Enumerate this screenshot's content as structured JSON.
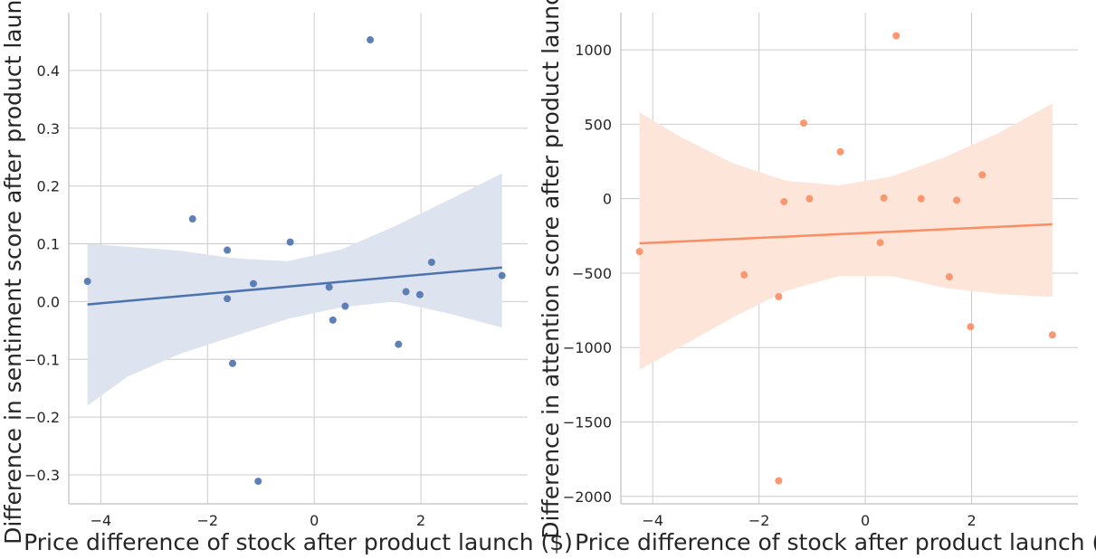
{
  "chart_data": [
    {
      "type": "scatter",
      "name_hint": "left",
      "xlabel": "Price difference of stock after product launch ($)",
      "ylabel": "Difference in sentiment score after product launch",
      "xlim": [
        -4.6,
        4.0
      ],
      "ylim": [
        -0.35,
        0.5
      ],
      "xticks": [
        -4,
        -2,
        0,
        2
      ],
      "xtick_labels": [
        "−4",
        "−2",
        "0",
        "2"
      ],
      "yticks": [
        -0.3,
        -0.2,
        -0.1,
        0.0,
        0.1,
        0.2,
        0.3,
        0.4
      ],
      "ytick_labels": [
        "−0.3",
        "−0.2",
        "−0.1",
        "0.0",
        "0.1",
        "0.2",
        "0.3",
        "0.4"
      ],
      "grid": true,
      "color": "#4c72b0",
      "band_color": "#dde4f0",
      "points": [
        {
          "x": -4.25,
          "y": 0.035
        },
        {
          "x": -2.28,
          "y": 0.143
        },
        {
          "x": -1.63,
          "y": 0.089
        },
        {
          "x": -1.63,
          "y": 0.005
        },
        {
          "x": -1.53,
          "y": -0.107
        },
        {
          "x": -1.14,
          "y": 0.031
        },
        {
          "x": -1.05,
          "y": -0.311
        },
        {
          "x": -0.45,
          "y": 0.103
        },
        {
          "x": 0.28,
          "y": 0.025
        },
        {
          "x": 0.35,
          "y": -0.032
        },
        {
          "x": 0.58,
          "y": -0.008
        },
        {
          "x": 1.05,
          "y": 0.453
        },
        {
          "x": 1.58,
          "y": -0.074
        },
        {
          "x": 1.72,
          "y": 0.017
        },
        {
          "x": 1.98,
          "y": 0.012
        },
        {
          "x": 2.2,
          "y": 0.068
        },
        {
          "x": 3.52,
          "y": 0.045
        }
      ],
      "fit_line": {
        "x": [
          -4.25,
          3.52
        ],
        "y": [
          -0.005,
          0.059
        ]
      },
      "confidence_band": {
        "x": [
          -4.25,
          -3.5,
          -2.5,
          -1.5,
          -0.5,
          0.5,
          1.5,
          2.5,
          3.52
        ],
        "upper": [
          0.1,
          0.095,
          0.088,
          0.075,
          0.07,
          0.09,
          0.13,
          0.175,
          0.222
        ],
        "lower": [
          -0.18,
          -0.13,
          -0.09,
          -0.06,
          -0.03,
          -0.01,
          0.0,
          -0.02,
          -0.045
        ]
      }
    },
    {
      "type": "scatter",
      "name_hint": "right",
      "xlabel": "Price difference of stock after product launch ($)",
      "ylabel": "Difference in attention score after product launch",
      "xlim": [
        -4.6,
        4.0
      ],
      "ylim": [
        -2050,
        1250
      ],
      "xticks": [
        -4,
        -2,
        0,
        2
      ],
      "xtick_labels": [
        "−4",
        "−2",
        "0",
        "2"
      ],
      "yticks": [
        -2000,
        -1500,
        -1000,
        -500,
        0,
        500,
        1000
      ],
      "ytick_labels": [
        "−2000",
        "−1500",
        "−1000",
        "−500",
        "0",
        "500",
        "1000"
      ],
      "grid": true,
      "color": "#fc8d62",
      "band_color": "#fee5da",
      "points": [
        {
          "x": -4.25,
          "y": -355
        },
        {
          "x": -2.28,
          "y": -512
        },
        {
          "x": -1.63,
          "y": -658
        },
        {
          "x": -1.63,
          "y": -1895
        },
        {
          "x": -1.53,
          "y": -20
        },
        {
          "x": -1.16,
          "y": 508
        },
        {
          "x": -1.05,
          "y": 0
        },
        {
          "x": -0.47,
          "y": 315
        },
        {
          "x": 0.28,
          "y": -295
        },
        {
          "x": 0.35,
          "y": 5
        },
        {
          "x": 0.58,
          "y": 1095
        },
        {
          "x": 1.05,
          "y": 0
        },
        {
          "x": 1.58,
          "y": -525
        },
        {
          "x": 1.72,
          "y": -10
        },
        {
          "x": 1.98,
          "y": -860
        },
        {
          "x": 2.2,
          "y": 160
        },
        {
          "x": 3.52,
          "y": -915
        }
      ],
      "fit_line": {
        "x": [
          -4.25,
          3.52
        ],
        "y": [
          -300,
          -172
        ]
      },
      "confidence_band": {
        "x": [
          -4.25,
          -3.5,
          -2.5,
          -1.5,
          -0.5,
          0.5,
          1.5,
          2.5,
          3.52
        ],
        "upper": [
          580,
          420,
          240,
          120,
          90,
          150,
          280,
          440,
          640
        ],
        "lower": [
          -1150,
          -1000,
          -800,
          -620,
          -520,
          -520,
          -600,
          -640,
          -660
        ]
      }
    }
  ]
}
